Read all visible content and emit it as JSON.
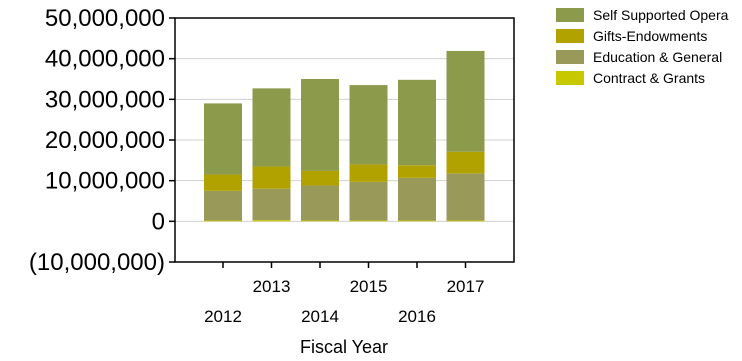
{
  "chart_data": {
    "type": "bar",
    "stacked": true,
    "title": "",
    "xlabel": "Fiscal Year",
    "ylabel": "",
    "categories": [
      "2012",
      "2013",
      "2014",
      "2015",
      "2016",
      "2017"
    ],
    "ylim": [
      -10000000,
      50000000
    ],
    "yticks": [
      -10000000,
      0,
      10000000,
      20000000,
      30000000,
      40000000,
      50000000
    ],
    "ytick_labels": [
      "(10,000,000)",
      "0",
      "10,000,000",
      "20,000,000",
      "30,000,000",
      "40,000,000",
      "50,000,000"
    ],
    "grid": true,
    "legend_position": "top-right",
    "series": [
      {
        "name": "Contract & Grants",
        "color": "#c8c800",
        "values": [
          200000,
          300000,
          200000,
          200000,
          200000,
          200000
        ]
      },
      {
        "name": "Education & General",
        "color": "#99995a",
        "values": [
          7300000,
          7700000,
          8600000,
          9500000,
          10500000,
          11600000
        ]
      },
      {
        "name": "Gifts-Endowments",
        "color": "#b2a200",
        "values": [
          4000000,
          5500000,
          3600000,
          4300000,
          3100000,
          5300000
        ]
      },
      {
        "name": "Self Supported Opera",
        "color": "#8c9a4c",
        "values": [
          17500000,
          19200000,
          22600000,
          19500000,
          21000000,
          24800000
        ]
      }
    ],
    "legend_order": [
      "Self Supported Opera",
      "Gifts-Endowments",
      "Education & General",
      "Contract & Grants"
    ]
  }
}
